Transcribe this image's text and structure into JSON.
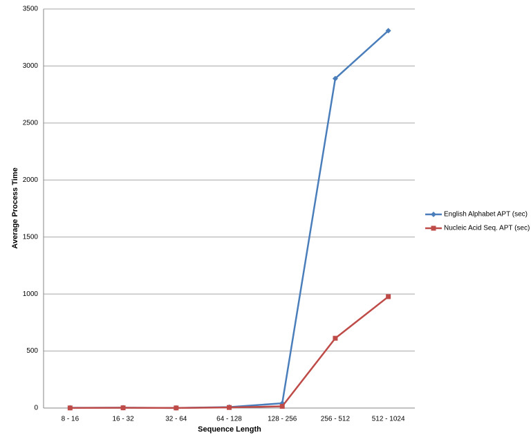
{
  "chart_data": {
    "type": "line",
    "x_label": "Sequence Length",
    "y_label": "Average Process Time",
    "categories": [
      "8 - 16",
      "16 - 32",
      "32 - 64",
      "64 - 128",
      "128 - 256",
      "256 - 512",
      "512 - 1024"
    ],
    "series": [
      {
        "name": "English Alphabet APT (sec)",
        "color": "#4a7ebb",
        "marker": "diamond",
        "values": [
          2,
          3,
          1,
          8,
          42,
          2890,
          3310
        ]
      },
      {
        "name": "Nucleic Acid Seq. APT (sec)",
        "color": "#be4b48",
        "marker": "square",
        "values": [
          1,
          2,
          1,
          5,
          15,
          612,
          977
        ]
      }
    ],
    "ylim": [
      0,
      3500
    ],
    "yticks": [
      0,
      500,
      1000,
      1500,
      2000,
      2500,
      3000,
      3500
    ],
    "grid": true,
    "legend": "right"
  }
}
